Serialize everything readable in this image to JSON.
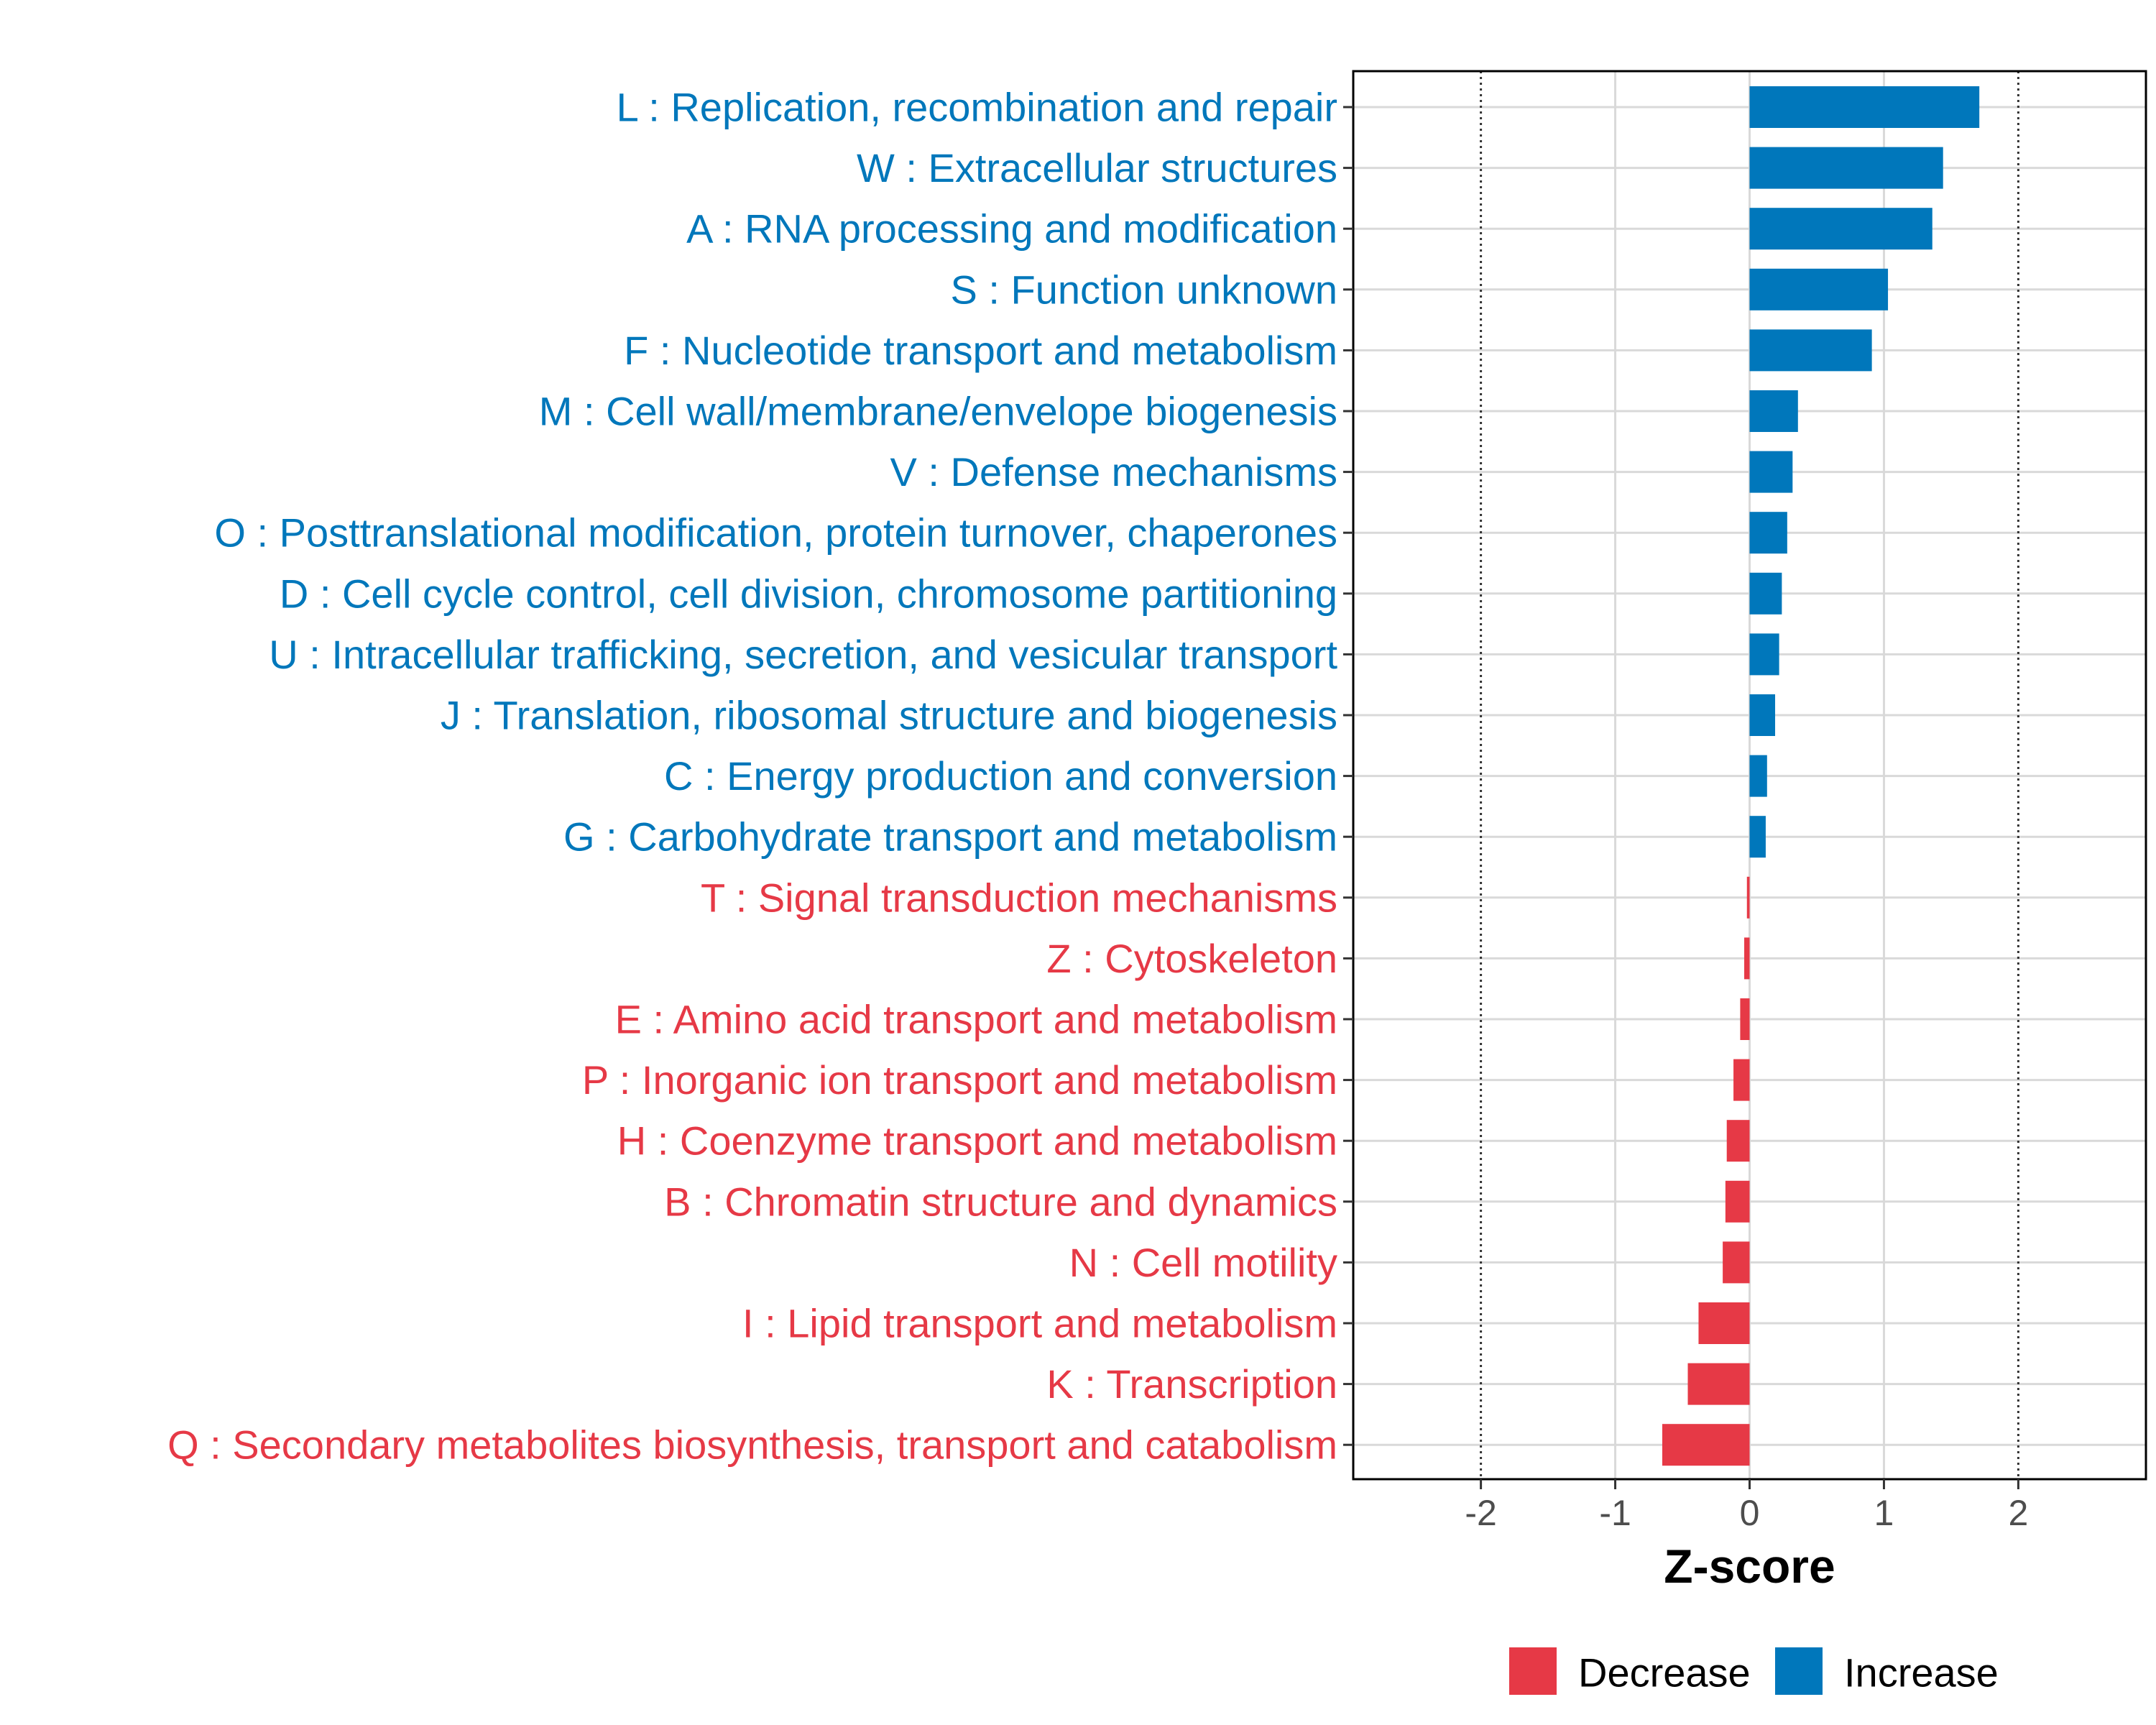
{
  "chart_data": {
    "type": "bar",
    "orientation": "horizontal",
    "title": "",
    "xlabel": "Z-score",
    "ylabel": "",
    "xlim": [
      -2.95,
      2.95
    ],
    "xticks": [
      -2,
      -1,
      0,
      1,
      2
    ],
    "xtick_labels": [
      "-2",
      "-1",
      "0",
      "1",
      "2"
    ],
    "reference_lines": [
      -2,
      2
    ],
    "grid": true,
    "legend_position": "bottom",
    "colors": {
      "Increase": "#0077bb",
      "Decrease": "#e63946"
    },
    "legend": [
      {
        "name": "Decrease",
        "color": "#e63946"
      },
      {
        "name": "Increase",
        "color": "#0077bb"
      }
    ],
    "categories": [
      "L : Replication, recombination and repair",
      "W : Extracellular structures",
      "A : RNA processing and modification",
      "S : Function unknown",
      "F : Nucleotide transport and metabolism",
      "M : Cell wall/membrane/envelope biogenesis",
      "V : Defense mechanisms",
      "O : Posttranslational modification, protein turnover, chaperones",
      "D : Cell cycle control, cell division, chromosome partitioning",
      "U : Intracellular trafficking, secretion, and vesicular transport",
      "J : Translation, ribosomal structure and biogenesis",
      "C : Energy production and conversion",
      "G : Carbohydrate transport and metabolism",
      "T : Signal transduction mechanisms",
      "Z : Cytoskeleton",
      "E : Amino acid transport and metabolism",
      "P : Inorganic ion transport and metabolism",
      "H : Coenzyme transport and metabolism",
      "B : Chromatin structure and dynamics",
      "N : Cell motility",
      "I : Lipid transport and metabolism",
      "K : Transcription",
      "Q : Secondary metabolites biosynthesis, transport and catabolism"
    ],
    "values": [
      1.71,
      1.44,
      1.36,
      1.03,
      0.91,
      0.36,
      0.32,
      0.28,
      0.24,
      0.22,
      0.19,
      0.13,
      0.12,
      -0.02,
      -0.04,
      -0.07,
      -0.12,
      -0.17,
      -0.18,
      -0.2,
      -0.38,
      -0.46,
      -0.65
    ]
  }
}
